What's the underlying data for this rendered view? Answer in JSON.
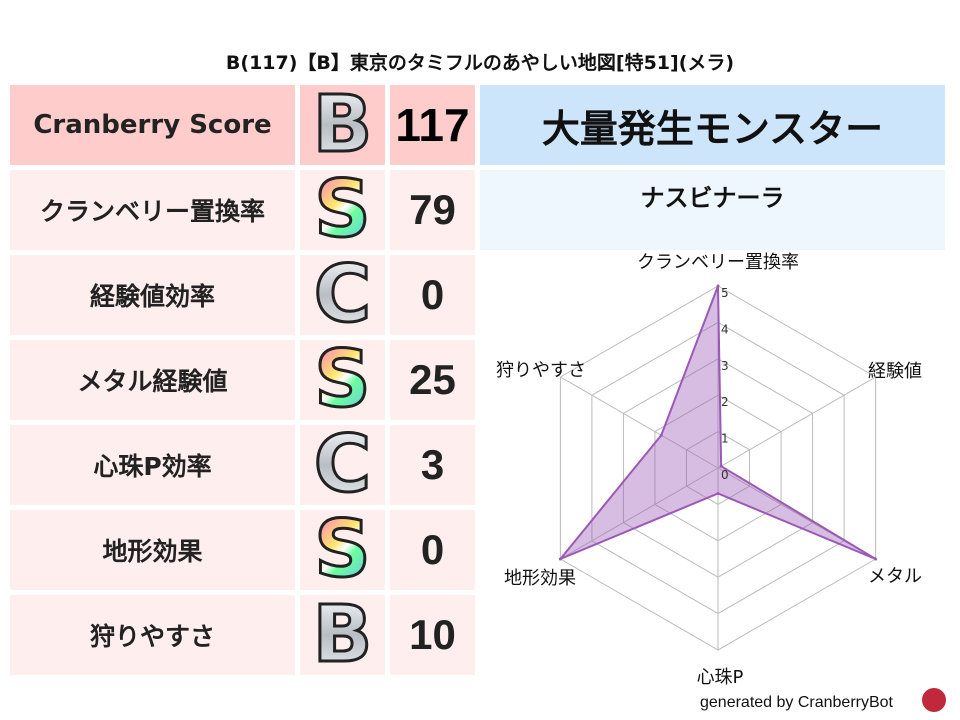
{
  "title": "B(117)【B】東京のタミフルのあやしい地図[特51](メラ)",
  "score": {
    "label": "Cranberry Score",
    "grade": "B",
    "value": "117"
  },
  "rows": [
    {
      "label": "クランベリー置換率",
      "grade": "S",
      "value": "79"
    },
    {
      "label": "経験値効率",
      "grade": "C",
      "value": "0"
    },
    {
      "label": "メタル経験値",
      "grade": "S",
      "value": "25"
    },
    {
      "label": "心珠P効率",
      "grade": "C",
      "value": "3"
    },
    {
      "label": "地形効果",
      "grade": "S",
      "value": "0"
    },
    {
      "label": "狩りやすさ",
      "grade": "B",
      "value": "10"
    }
  ],
  "right": {
    "header": "大量発生モンスター",
    "monster": "ナスビナーラ"
  },
  "chart_data": {
    "type": "radar",
    "axes": [
      "クランベリー置換率",
      "経験値",
      "メタル",
      "心珠P",
      "地形効果",
      "狩りやすさ"
    ],
    "values": [
      5,
      0.1,
      5,
      0.7,
      5,
      1.8
    ],
    "range": [
      0,
      5
    ],
    "ticks": [
      "0",
      "1",
      "2",
      "3",
      "4",
      "5"
    ],
    "color": "#9b59b6",
    "grid": true
  },
  "footer": "generated by CranberryBot",
  "colors": {
    "header_pink": "#ffcccc",
    "row_pink": "#ffeeee",
    "header_blue": "#cce5fb",
    "sub_blue": "#eef6fe"
  }
}
